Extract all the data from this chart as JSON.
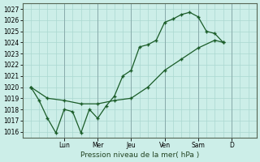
{
  "title": "",
  "xlabel": "Pression niveau de la mer( hPa )",
  "bg_color": "#cceee8",
  "grid_color": "#aad8d0",
  "line_color": "#1a5c28",
  "ylim": [
    1015.5,
    1027.5
  ],
  "yticks": [
    1016,
    1017,
    1018,
    1019,
    1020,
    1021,
    1022,
    1023,
    1024,
    1025,
    1026,
    1027
  ],
  "xlim": [
    -0.5,
    13.5
  ],
  "day_positions": [
    2,
    4,
    6,
    8,
    10,
    12
  ],
  "day_labels": [
    "Lun",
    "Mer",
    "Jeu",
    "Ven",
    "Sam",
    "D"
  ],
  "vlines": [
    2,
    4,
    6,
    8,
    10,
    12
  ],
  "series1_x": [
    0.0,
    0.5,
    1.0,
    1.5,
    2.0,
    2.5,
    3.0,
    3.5,
    4.0,
    4.5,
    5.0,
    5.5,
    6.0,
    6.5,
    7.0,
    7.5,
    8.0,
    8.5,
    9.0,
    9.5,
    10.0,
    10.5,
    11.0,
    11.5
  ],
  "series1_y": [
    1020.0,
    1018.8,
    1017.2,
    1015.9,
    1018.0,
    1017.8,
    1015.9,
    1018.0,
    1017.2,
    1018.3,
    1019.2,
    1021.0,
    1021.5,
    1023.6,
    1023.8,
    1024.2,
    1025.8,
    1026.1,
    1026.5,
    1026.7,
    1026.3,
    1025.0,
    1024.8,
    1024.0
  ],
  "series2_x": [
    0.0,
    1.0,
    2.0,
    3.0,
    4.0,
    5.0,
    6.0,
    7.0,
    8.0,
    9.0,
    10.0,
    11.0,
    11.5
  ],
  "series2_y": [
    1020.0,
    1019.0,
    1018.8,
    1018.5,
    1018.5,
    1018.8,
    1019.0,
    1020.0,
    1021.5,
    1022.5,
    1023.5,
    1024.2,
    1024.0
  ]
}
